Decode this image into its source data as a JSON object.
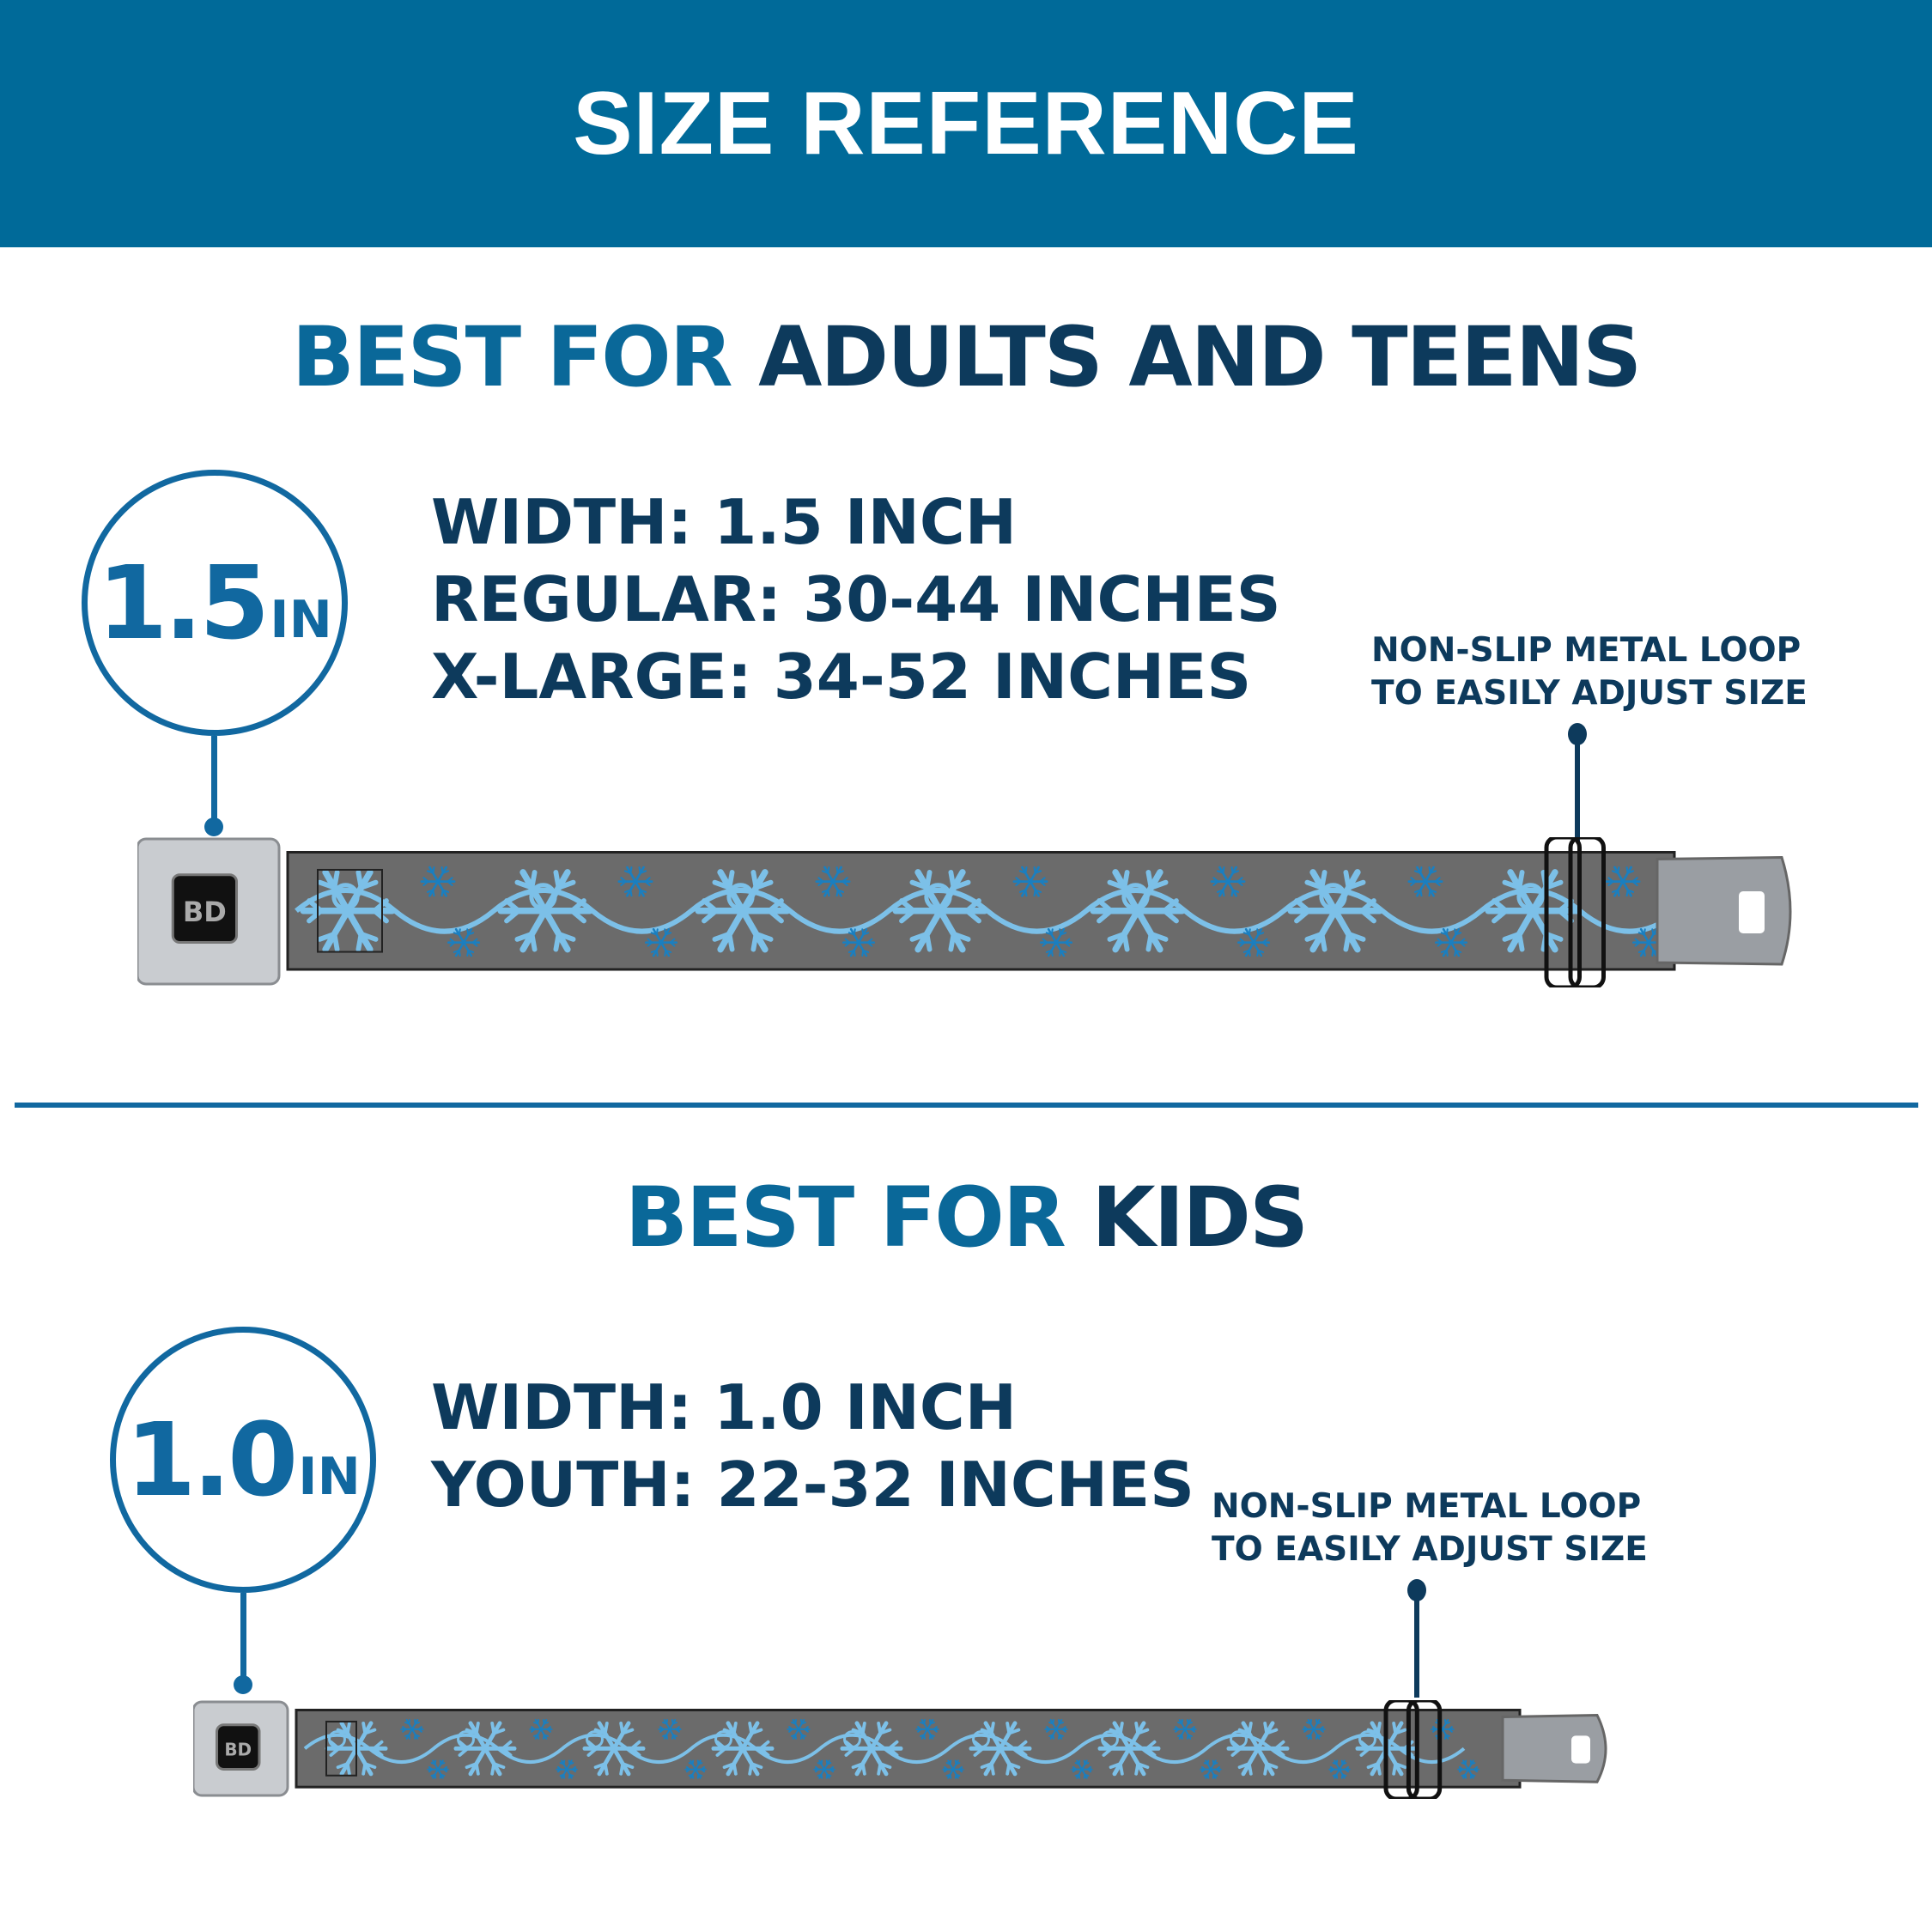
{
  "header": {
    "title": "SIZE REFERENCE"
  },
  "colors": {
    "header_bg": "#006a99",
    "accent_blue": "#0a6899",
    "dark_navy": "#0d3a5c",
    "strap_gray": "#6b6b6b",
    "snowflake_light": "#7cc0e8",
    "snowflake_dark": "#1a7fc0"
  },
  "adults": {
    "heading_prefix": "BEST FOR",
    "heading_main": "ADULTS AND TEENS",
    "badge_value": "1.5",
    "badge_unit": "IN",
    "specs": [
      "WIDTH: 1.5 INCH",
      "REGULAR: 30-44 INCHES",
      "X-LARGE: 34-52 INCHES"
    ],
    "note_lines": [
      "NON-SLIP METAL LOOP",
      "TO EASILY ADJUST SIZE"
    ]
  },
  "kids": {
    "heading_prefix": "BEST FOR",
    "heading_main": "KIDS",
    "badge_value": "1.0",
    "badge_unit": "IN",
    "specs": [
      "WIDTH: 1.0 INCH",
      "YOUTH: 22-32 INCHES"
    ],
    "note_lines": [
      "NON-SLIP METAL LOOP",
      "TO EASILY ADJUST SIZE"
    ]
  },
  "product": {
    "buckle_logo": "BD",
    "pattern": "snowflakes-and-swirls"
  }
}
